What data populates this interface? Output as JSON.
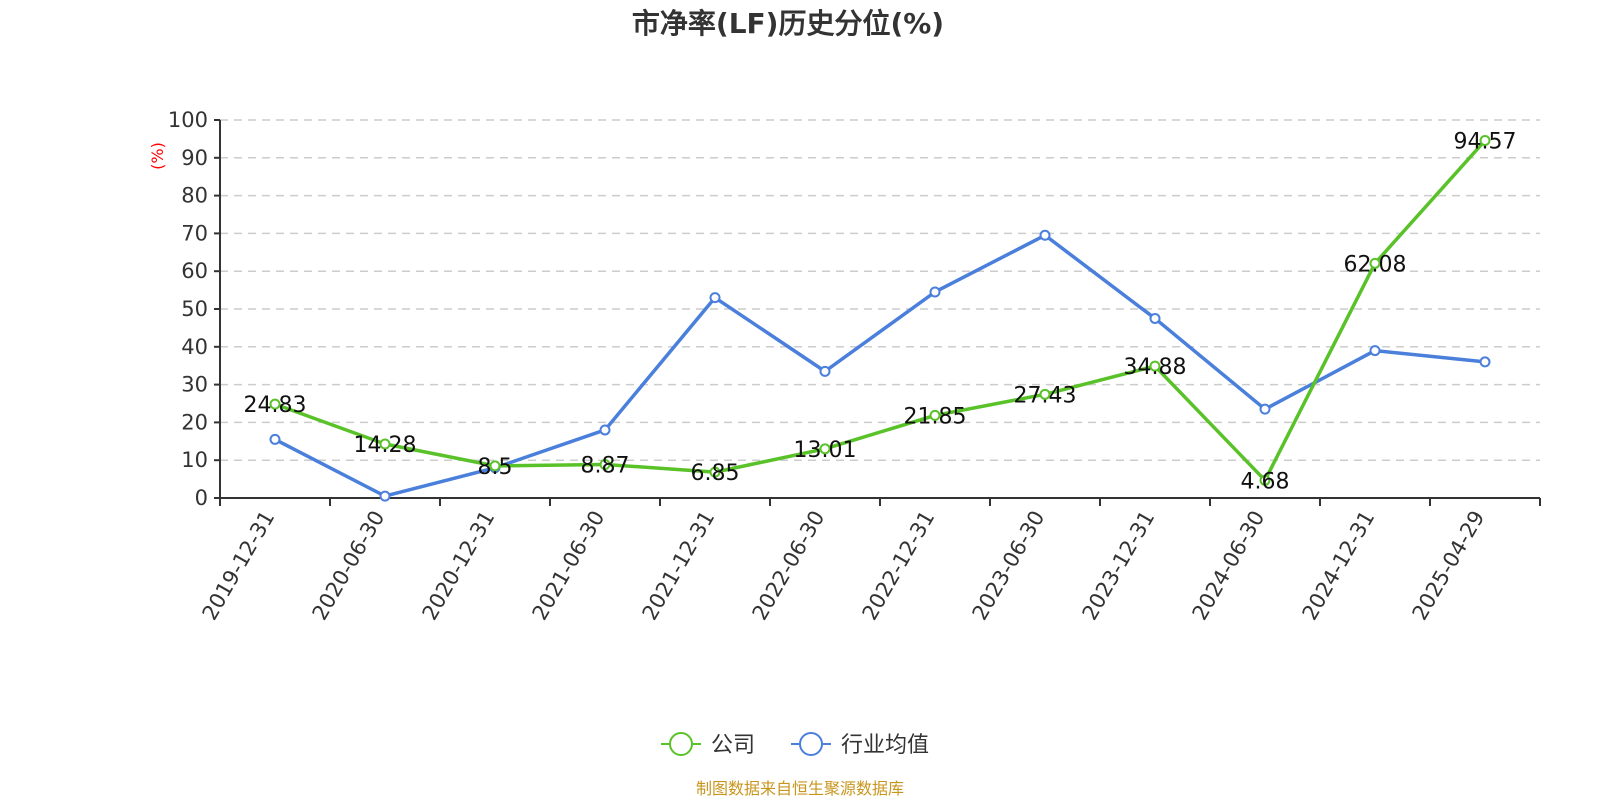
{
  "chart_data": {
    "type": "line",
    "title": "市净率(LF)历史分位(%)",
    "ylabel": "(%)",
    "xlabel": "",
    "ylim": [
      0,
      100
    ],
    "yticks": [
      0,
      10,
      20,
      30,
      40,
      50,
      60,
      70,
      80,
      90,
      100
    ],
    "grid": true,
    "legend_position": "bottom-center",
    "categories": [
      "2019-12-31",
      "2020-06-30",
      "2020-12-31",
      "2021-06-30",
      "2021-12-31",
      "2022-06-30",
      "2022-12-31",
      "2023-06-30",
      "2023-12-31",
      "2024-06-30",
      "2024-12-31",
      "2025-04-29"
    ],
    "series": [
      {
        "name": "公司",
        "color": "#5ac229",
        "values": [
          24.83,
          14.28,
          8.5,
          8.87,
          6.85,
          13.01,
          21.85,
          27.43,
          34.88,
          4.68,
          62.08,
          94.57
        ],
        "labels": [
          "24.83",
          "14.28",
          "8.5",
          "8.87",
          "6.85",
          "13.01",
          "21.85",
          "27.43",
          "34.88",
          "4.68",
          "62.08",
          "94.57"
        ]
      },
      {
        "name": "行业均值",
        "color": "#4a7fdc",
        "values": [
          15.5,
          0.5,
          8.0,
          18.0,
          53.0,
          33.5,
          54.5,
          69.5,
          47.5,
          23.5,
          39.0,
          36.0
        ]
      }
    ]
  },
  "source_text": "制图数据来自恒生聚源数据库"
}
